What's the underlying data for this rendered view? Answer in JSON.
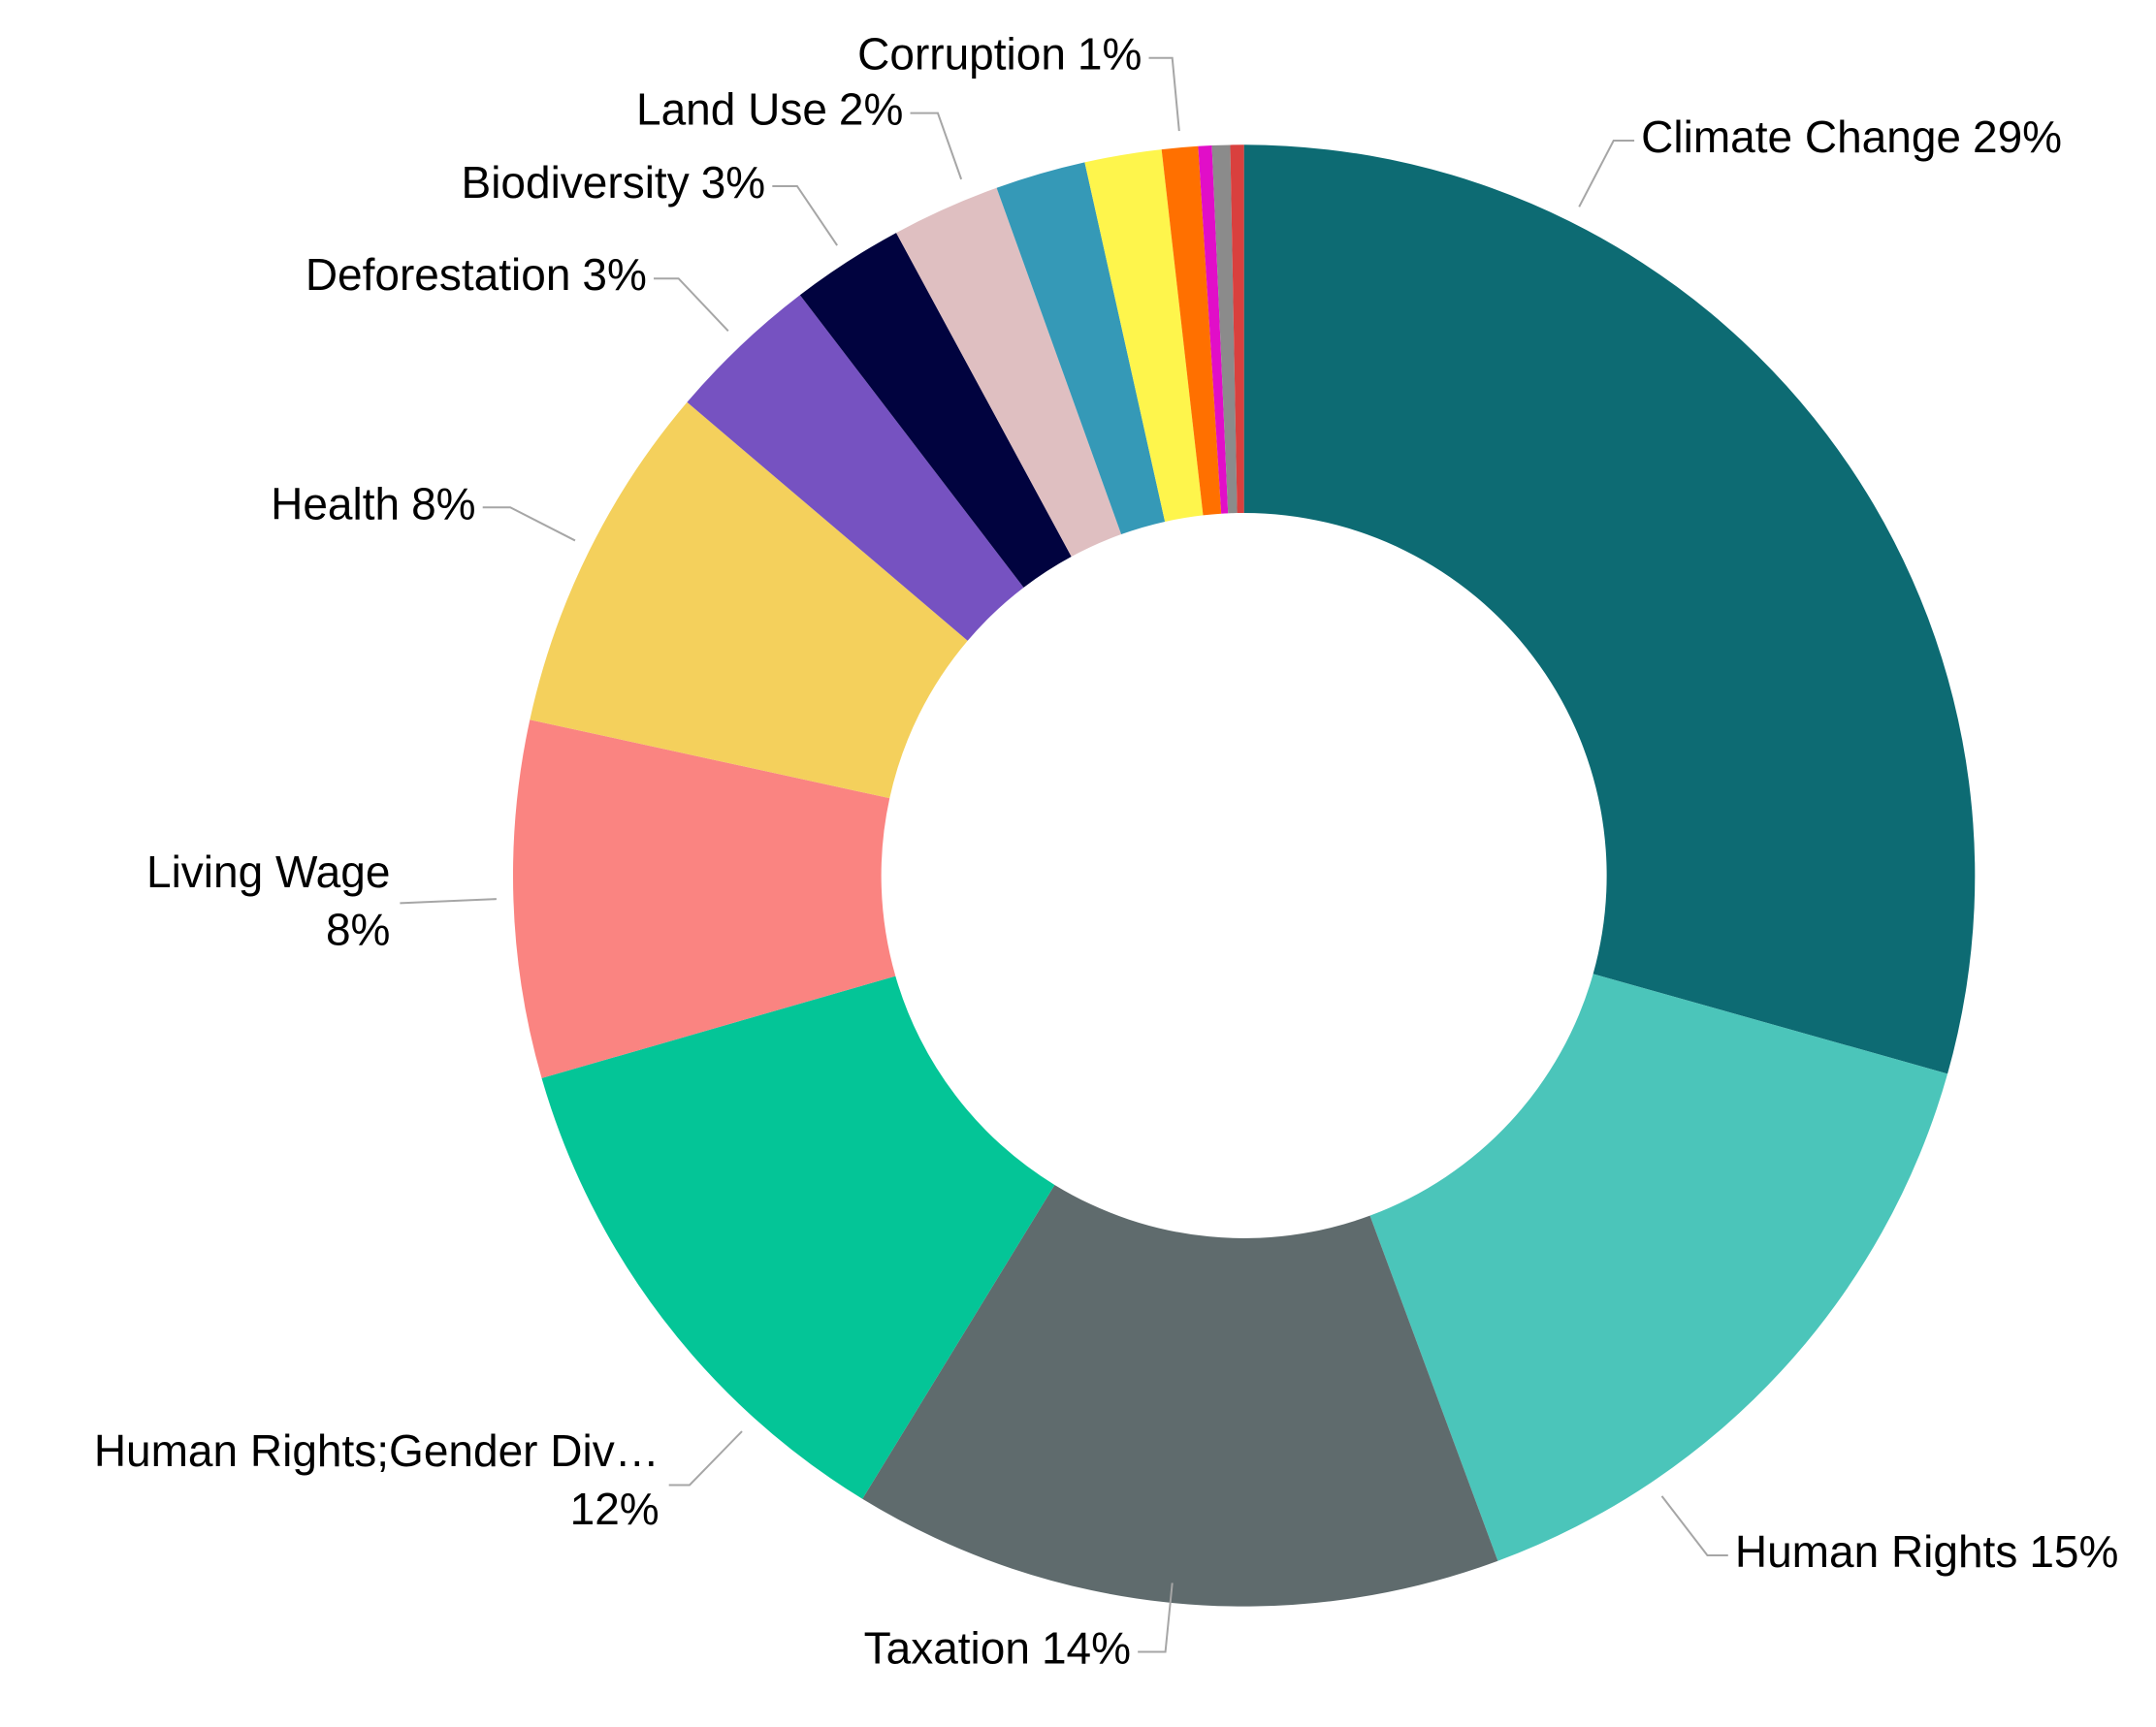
{
  "chart_data": {
    "type": "donut",
    "categories": [
      "Climate Change",
      "Human Rights",
      "Taxation",
      "Human Rights;Gender Div…",
      "Living Wage",
      "Health",
      "Deforestation",
      "Biodiversity",
      "Land Use",
      null,
      null,
      "Corruption",
      null,
      null,
      null
    ],
    "values": [
      29.4,
      15,
      14.4,
      11.8,
      7.9,
      7.8,
      3.4,
      2.5,
      2.4,
      2.0,
      1.7,
      0.8,
      0.3,
      0.4,
      0.3
    ],
    "value_labels": [
      "29%",
      "15%",
      "14%",
      "12%",
      "8%",
      "8%",
      "3%",
      "3%",
      "2%",
      null,
      null,
      "1%",
      null,
      null,
      null
    ],
    "colors": [
      "#0d6b73",
      "#4bc5ba",
      "#5f6b6d",
      "#04c597",
      "#fa8481",
      "#f4d05c",
      "#7652c1",
      "#01033f",
      "#dfbfc1",
      "#3599b7",
      "#fef54c",
      "#ff7000",
      "#e10ec8",
      "#8b8b8b",
      "#d9403e"
    ]
  }
}
